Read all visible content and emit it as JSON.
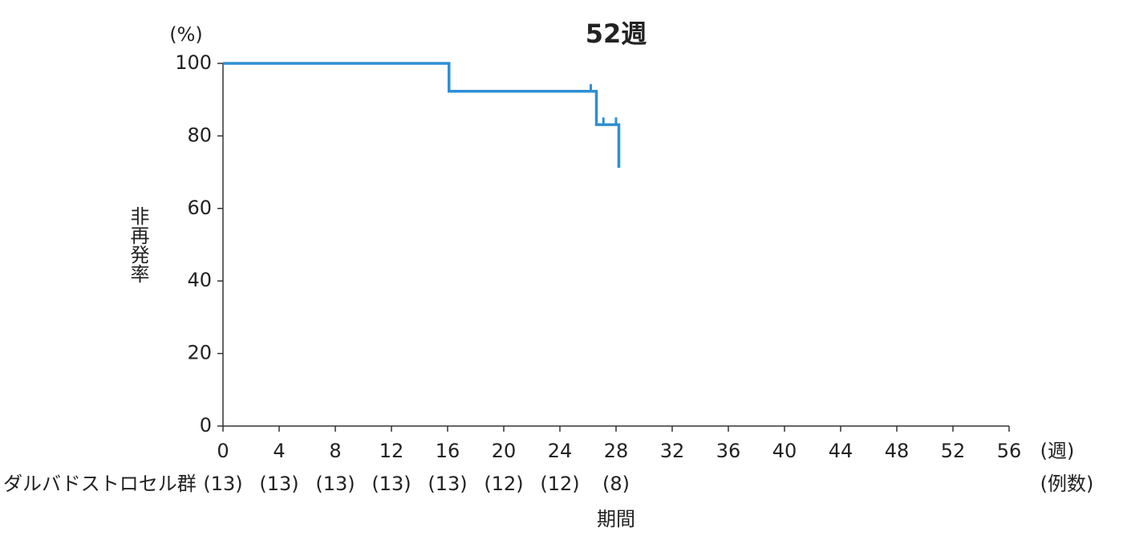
{
  "chart_data": {
    "type": "km",
    "title": "52週",
    "y_unit": "(%)",
    "y_label": "非再発率",
    "x_unit": "(週)",
    "x_label": "期間",
    "xlim": [
      0,
      56
    ],
    "xticks": [
      0,
      4,
      8,
      12,
      16,
      20,
      24,
      28,
      32,
      36,
      40,
      44,
      48,
      52,
      56
    ],
    "ylim": [
      0,
      100
    ],
    "yticks": [
      0,
      20,
      40,
      60,
      80,
      100
    ],
    "grid": false,
    "series": [
      {
        "color": "#2e8fd4",
        "x": [
          0,
          16.1,
          16.1,
          26.6,
          26.6,
          28.2,
          28.2
        ],
        "values": [
          100,
          100,
          92.3,
          92.3,
          83.1,
          83.1,
          71.2
        ],
        "censored_x": [
          26.2,
          27.1,
          28.0
        ],
        "censored_values": [
          92.3,
          83.1,
          83.1
        ]
      }
    ],
    "at_risk": {
      "label": "ダルバドストロセル群",
      "unit": "(例数)",
      "values": [
        13,
        13,
        13,
        13,
        13,
        12,
        12,
        8
      ],
      "value_labels": [
        "(13)",
        "(13)",
        "(13)",
        "(13)",
        "(13)",
        "(12)",
        "(12)",
        "(8)"
      ]
    }
  }
}
